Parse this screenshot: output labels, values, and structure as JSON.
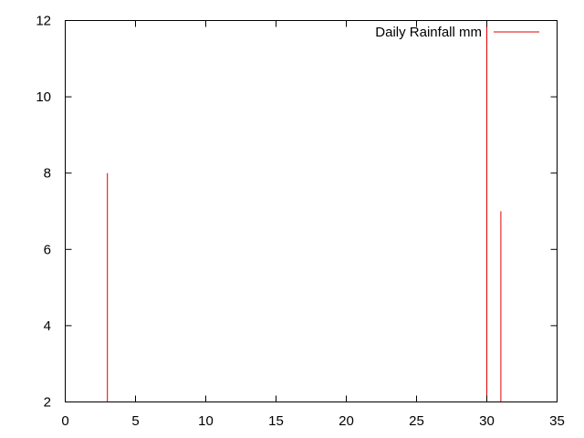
{
  "chart_data": {
    "type": "impulse",
    "series": [
      {
        "name": "Daily Rainfall mm",
        "color": "#e00000",
        "x": [
          3,
          30,
          31
        ],
        "y": [
          8,
          12,
          7
        ]
      }
    ],
    "xlim": [
      0,
      35
    ],
    "ylim": [
      2,
      12
    ],
    "xticks": [
      0,
      5,
      10,
      15,
      20,
      25,
      30,
      35
    ],
    "yticks": [
      2,
      4,
      6,
      8,
      10,
      12
    ],
    "xtick_labels": [
      "0",
      "5",
      "10",
      "15",
      "20",
      "25",
      "30",
      "35"
    ],
    "ytick_labels": [
      "2",
      "4",
      "6",
      "8",
      "10",
      "12"
    ],
    "grid": false,
    "legend_position": "top-right",
    "title": "",
    "xlabel": "",
    "ylabel": ""
  }
}
